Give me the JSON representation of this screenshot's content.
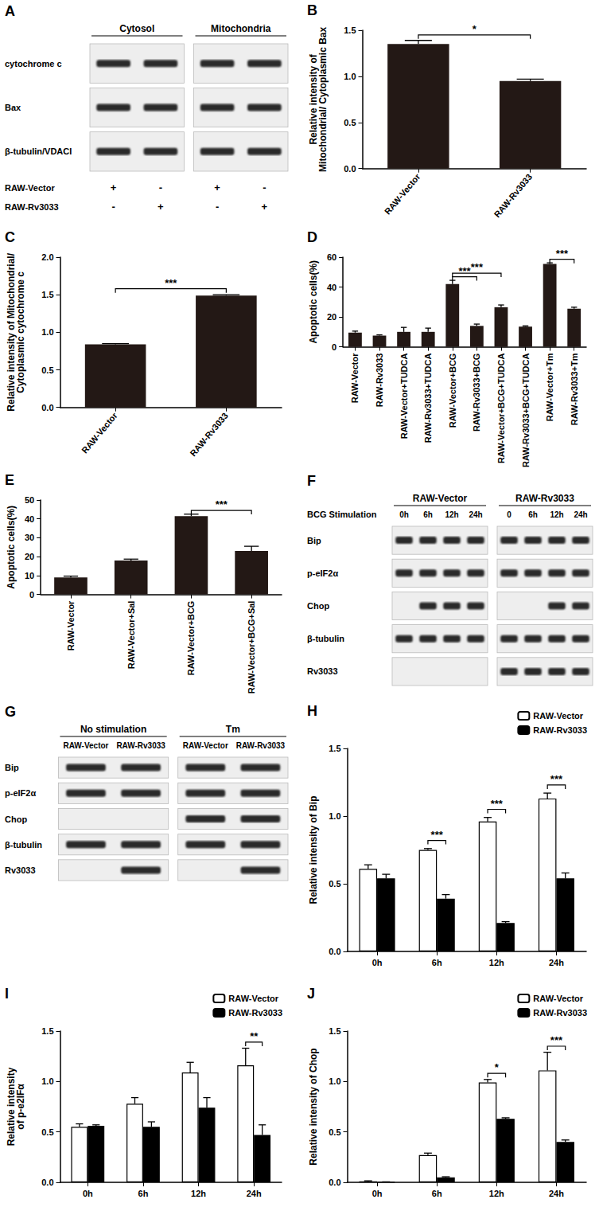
{
  "chart_data": [
    {
      "panel": "B",
      "type": "bar",
      "ylabel": "Relative intensity of Mitochondrial/ Cytoplasmic Bax",
      "categories": [
        "RAW-Vector",
        "RAW-Rv3033"
      ],
      "values": [
        1.35,
        0.95
      ],
      "errors": [
        0.04,
        0.02
      ],
      "color": "#231815",
      "ylim": [
        0,
        1.5
      ],
      "yticks": [
        {
          "value": 0,
          "label": "0.0"
        },
        {
          "value": 0.5,
          "label": "0.5"
        },
        {
          "value": 1,
          "label": "1.0"
        },
        {
          "value": 1.5,
          "label": "1.5"
        }
      ],
      "grid": false,
      "annotations": [
        {
          "from": "RAW-Vector",
          "to": "RAW-Rv3033",
          "text": "*"
        }
      ]
    },
    {
      "panel": "C",
      "type": "bar",
      "ylabel": "Relative intensity of Mitochondrial/ Cytoplasmic cytochrome c",
      "categories": [
        "RAW-Vector",
        "RAW-Rv3033"
      ],
      "values": [
        0.84,
        1.49
      ],
      "errors": [
        0.01,
        0.01
      ],
      "color": "#231815",
      "ylim": [
        0,
        2
      ],
      "yticks": [
        {
          "value": 0,
          "label": "0.0"
        },
        {
          "value": 0.5,
          "label": "0.5"
        },
        {
          "value": 1,
          "label": "1.0"
        },
        {
          "value": 1.5,
          "label": "1.5"
        },
        {
          "value": 2,
          "label": "2.0"
        }
      ],
      "grid": false,
      "annotations": [
        {
          "from": "RAW-Vector",
          "to": "RAW-Rv3033",
          "text": "***"
        }
      ]
    },
    {
      "panel": "D",
      "type": "bar",
      "ylabel": "Apoptotic cells(%)",
      "categories": [
        "RAW-Vector",
        "RAW-Rv3033",
        "RAW-Vector+TUDCA",
        "RAW-Rv3033+TUDCA",
        "RAW-Vector+BCG",
        "RAW-Rv3033+BCG",
        "RAW-Vector+BCG+TUDCA",
        "RAW-Rv3033+BCG+TUDCA",
        "RAW-Vector+Tm",
        "RAW-Rv3033+Tm"
      ],
      "values": [
        9.5,
        7.5,
        10,
        10,
        42,
        14,
        26.5,
        13.5,
        55.5,
        25.5
      ],
      "errors": [
        1,
        0.5,
        3,
        2.5,
        2.5,
        1.2,
        1.5,
        0.5,
        0.7,
        1
      ],
      "color": "#231815",
      "ylim": [
        0,
        60
      ],
      "yticks": [
        0,
        20,
        40,
        60
      ],
      "grid": false,
      "annotations": [
        {
          "from": "RAW-Vector+BCG",
          "to": "RAW-Rv3033+BCG",
          "text": "***"
        },
        {
          "from": "RAW-Vector+BCG",
          "to": "RAW-Vector+BCG+TUDCA",
          "text": "***"
        },
        {
          "from": "RAW-Vector+Tm",
          "to": "RAW-Rv3033+Tm",
          "text": "***"
        }
      ]
    },
    {
      "panel": "E",
      "type": "bar",
      "ylabel": "Apoptotic cells(%)",
      "categories": [
        "RAW-Vector",
        "RAW-Vector+Sal",
        "RAW-Vector+BCG",
        "RAW-Vector+BCG+Sal"
      ],
      "values": [
        9,
        18,
        41.5,
        23
      ],
      "errors": [
        0.7,
        0.7,
        1,
        2.5
      ],
      "color": "#231815",
      "ylim": [
        0,
        50
      ],
      "yticks": [
        0,
        10,
        20,
        30,
        40,
        50
      ],
      "grid": false,
      "annotations": [
        {
          "from": "RAW-Vector+BCG",
          "to": "RAW-Vector+BCG+Sal",
          "text": "***"
        }
      ]
    },
    {
      "panel": "H",
      "type": "bar",
      "ylabel": "Relative intensity of Bip",
      "categories": [
        "0h",
        "6h",
        "12h",
        "24h"
      ],
      "series": [
        {
          "name": "RAW-Vector",
          "color": "#ffffff",
          "values": [
            0.61,
            0.75,
            0.96,
            1.13
          ],
          "errors": [
            0.03,
            0.01,
            0.03,
            0.04
          ]
        },
        {
          "name": "RAW-Rv3033",
          "color": "#000000",
          "values": [
            0.54,
            0.39,
            0.21,
            0.54
          ],
          "errors": [
            0.03,
            0.03,
            0.01,
            0.04
          ]
        }
      ],
      "ylim": [
        0,
        1.5
      ],
      "yticks": [
        {
          "value": 0,
          "label": "0.0"
        },
        {
          "value": 0.5,
          "label": "0.5"
        },
        {
          "value": 1,
          "label": "1.0"
        },
        {
          "value": 1.5,
          "label": "1.5"
        }
      ],
      "grid": false,
      "legend": "upper right",
      "annotations": [
        {
          "category": "6h",
          "text": "***"
        },
        {
          "category": "12h",
          "text": "***"
        },
        {
          "category": "24h",
          "text": "***"
        }
      ]
    },
    {
      "panel": "I",
      "type": "bar",
      "ylabel": "Relative intensity of p-e2IFα",
      "categories": [
        "0h",
        "6h",
        "12h",
        "24h"
      ],
      "series": [
        {
          "name": "RAW-Vector",
          "color": "#ffffff",
          "values": [
            0.55,
            0.78,
            1.09,
            1.16
          ],
          "errors": [
            0.03,
            0.06,
            0.1,
            0.17
          ]
        },
        {
          "name": "RAW-Rv3033",
          "color": "#000000",
          "values": [
            0.56,
            0.55,
            0.74,
            0.47
          ],
          "errors": [
            0.01,
            0.05,
            0.1,
            0.1
          ]
        }
      ],
      "ylim": [
        0,
        1.5
      ],
      "yticks": [
        {
          "value": 0,
          "label": "0.0"
        },
        {
          "value": 0.5,
          "label": "0.5"
        },
        {
          "value": 1,
          "label": "1.0"
        },
        {
          "value": 1.5,
          "label": "1.5"
        }
      ],
      "grid": false,
      "legend": "upper right",
      "annotations": [
        {
          "category": "24h",
          "text": "**"
        }
      ]
    },
    {
      "panel": "J",
      "type": "bar",
      "ylabel": "Relative intensity of Chop",
      "categories": [
        "0h",
        "6h",
        "12h",
        "24h"
      ],
      "series": [
        {
          "name": "RAW-Vector",
          "color": "#ffffff",
          "values": [
            0.01,
            0.27,
            0.99,
            1.11
          ],
          "errors": [
            0.005,
            0.02,
            0.03,
            0.18
          ]
        },
        {
          "name": "RAW-Rv3033",
          "color": "#000000",
          "values": [
            0.005,
            0.05,
            0.63,
            0.4
          ],
          "errors": [
            0,
            0.005,
            0.01,
            0.02
          ]
        }
      ],
      "ylim": [
        0,
        1.5
      ],
      "yticks": [
        {
          "value": 0,
          "label": "0.0"
        },
        {
          "value": 0.5,
          "label": "0.5"
        },
        {
          "value": 1,
          "label": "1.0"
        },
        {
          "value": 1.5,
          "label": "1.5"
        }
      ],
      "grid": false,
      "legend": "upper right",
      "annotations": [
        {
          "category": "12h",
          "text": "*"
        },
        {
          "category": "24h",
          "text": "***"
        }
      ]
    }
  ],
  "blots": [
    {
      "panel": "A",
      "groups": [
        {
          "label": "Cytosol",
          "lanes": 2
        },
        {
          "label": "Mitochondria",
          "lanes": 2
        }
      ],
      "rows": [
        {
          "label": "cytochrome c",
          "present": [
            true,
            true,
            true,
            true
          ]
        },
        {
          "label": "Bax",
          "present": [
            true,
            true,
            true,
            true
          ]
        },
        {
          "label": "β-tubulin/VDACI",
          "present": [
            true,
            true,
            true,
            true
          ]
        }
      ],
      "conditions": [
        {
          "label": "RAW-Vector",
          "marks": [
            "+",
            "-",
            "+",
            "-"
          ]
        },
        {
          "label": "RAW-Rv3033",
          "marks": [
            "-",
            "+",
            "-",
            "+"
          ]
        }
      ]
    },
    {
      "panel": "F",
      "row_title": "BCG Stimulation",
      "groups": [
        {
          "label": "RAW-Vector",
          "lanes": [
            "0h",
            "6h",
            "12h",
            "24h"
          ]
        },
        {
          "label": "RAW-Rv3033",
          "lanes": [
            "0",
            "6h",
            "12h",
            "24h"
          ]
        }
      ],
      "rows": [
        {
          "label": "Bip",
          "present": [
            true,
            true,
            true,
            true,
            true,
            true,
            true,
            true
          ]
        },
        {
          "label": "p-eIF2α",
          "present": [
            true,
            true,
            true,
            true,
            true,
            true,
            true,
            true
          ]
        },
        {
          "label": "Chop",
          "present": [
            false,
            true,
            true,
            true,
            false,
            false,
            true,
            true
          ]
        },
        {
          "label": "β-tubulin",
          "present": [
            true,
            true,
            true,
            true,
            true,
            true,
            true,
            true
          ]
        },
        {
          "label": "Rv3033",
          "present": [
            false,
            false,
            false,
            false,
            true,
            true,
            true,
            true
          ]
        }
      ]
    },
    {
      "panel": "G",
      "groups": [
        {
          "label": "No stimulation",
          "lanes": [
            "RAW-Vector",
            "RAW-Rv3033"
          ]
        },
        {
          "label": "Tm",
          "lanes": [
            "RAW-Vector",
            "RAW-Rv3033"
          ]
        }
      ],
      "rows": [
        {
          "label": "Bip",
          "present": [
            true,
            true,
            true,
            true
          ]
        },
        {
          "label": "p-eIF2α",
          "present": [
            true,
            true,
            true,
            true
          ]
        },
        {
          "label": "Chop",
          "present": [
            false,
            false,
            true,
            true
          ]
        },
        {
          "label": "β-tubulin",
          "present": [
            true,
            true,
            true,
            true
          ]
        },
        {
          "label": "Rv3033",
          "present": [
            false,
            true,
            false,
            true
          ]
        }
      ]
    }
  ]
}
